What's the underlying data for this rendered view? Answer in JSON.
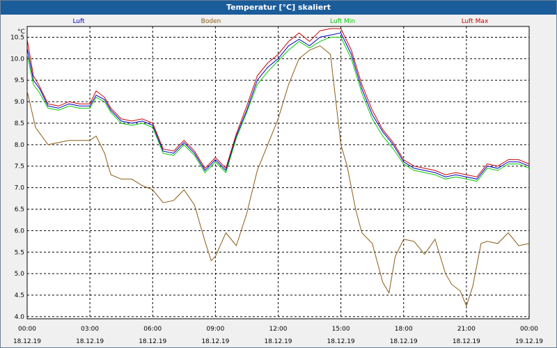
{
  "chart_data": {
    "type": "line",
    "title": "Temperatur [°C] skaliert",
    "ylabel": "°C",
    "ylim": [
      4.0,
      10.5
    ],
    "xlim_hours": [
      0,
      24
    ],
    "grid": true,
    "legend_position": "top",
    "y_ticks": [
      "10.5",
      "10.0",
      "9.5",
      "9.0",
      "8.5",
      "8.0",
      "7.5",
      "7.0",
      "6.5",
      "6.0",
      "5.5",
      "5.0",
      "4.5",
      "4.0"
    ],
    "x_ticks": [
      {
        "time": "00:00",
        "date": "18.12.19"
      },
      {
        "time": "03:00",
        "date": "18.12.19"
      },
      {
        "time": "06:00",
        "date": "18.12.19"
      },
      {
        "time": "09:00",
        "date": "18.12.19"
      },
      {
        "time": "12:00",
        "date": "18.12.19"
      },
      {
        "time": "15:00",
        "date": "18.12.19"
      },
      {
        "time": "18:00",
        "date": "18.12.19"
      },
      {
        "time": "21:00",
        "date": "18.12.19"
      },
      {
        "time": "00:00",
        "date": "19.12.19"
      }
    ],
    "series": [
      {
        "name": "Luft",
        "color": "#0000c8",
        "x": [
          0,
          0.3,
          0.6,
          1,
          1.5,
          2,
          2.5,
          3,
          3.3,
          3.7,
          4,
          4.5,
          5,
          5.5,
          6,
          6.5,
          7,
          7.5,
          8,
          8.5,
          9,
          9.5,
          10,
          10.5,
          11,
          11.5,
          12,
          12.5,
          13,
          13.5,
          14,
          14.5,
          15,
          15.5,
          16,
          16.5,
          17,
          17.5,
          18,
          18.5,
          19,
          19.5,
          20,
          20.5,
          21,
          21.5,
          22,
          22.5,
          23,
          23.5,
          24
        ],
        "y": [
          10.25,
          9.5,
          9.3,
          8.9,
          8.85,
          8.95,
          8.9,
          8.9,
          9.15,
          9.05,
          8.8,
          8.55,
          8.5,
          8.55,
          8.45,
          7.85,
          7.8,
          8.05,
          7.8,
          7.4,
          7.65,
          7.4,
          8.2,
          8.8,
          9.5,
          9.8,
          10.0,
          10.3,
          10.45,
          10.3,
          10.5,
          10.55,
          10.6,
          10.1,
          9.3,
          8.7,
          8.3,
          8.0,
          7.6,
          7.45,
          7.4,
          7.35,
          7.25,
          7.3,
          7.25,
          7.2,
          7.5,
          7.45,
          7.6,
          7.6,
          7.5
        ]
      },
      {
        "name": "Boden",
        "color": "#8b5a14",
        "x": [
          0,
          0.4,
          1,
          1.5,
          2,
          2.5,
          3,
          3.3,
          3.7,
          4,
          4.5,
          5,
          5.5,
          6,
          6.5,
          7,
          7.5,
          8,
          8.5,
          8.8,
          9,
          9.5,
          10,
          10.5,
          11,
          11.5,
          12,
          12.5,
          13,
          13.5,
          14,
          14.5,
          15,
          15.3,
          15.7,
          16,
          16.5,
          17,
          17.3,
          17.6,
          18,
          18.5,
          19,
          19.5,
          20,
          20.3,
          20.7,
          21,
          21.3,
          21.7,
          22,
          22.5,
          23,
          23.5,
          24
        ],
        "y": [
          9.25,
          8.4,
          8.0,
          8.05,
          8.1,
          8.1,
          8.1,
          8.2,
          7.8,
          7.3,
          7.2,
          7.2,
          7.05,
          6.95,
          6.65,
          6.7,
          6.95,
          6.6,
          5.75,
          5.3,
          5.4,
          5.95,
          5.65,
          6.4,
          7.4,
          8.0,
          8.6,
          9.4,
          10.0,
          10.2,
          10.3,
          10.1,
          8.0,
          7.5,
          6.5,
          5.95,
          5.7,
          4.8,
          4.55,
          5.4,
          5.8,
          5.75,
          5.45,
          5.8,
          5.0,
          4.75,
          4.6,
          4.25,
          4.7,
          5.7,
          5.75,
          5.7,
          5.95,
          5.65,
          5.7
        ]
      },
      {
        "name": "Luft Min",
        "color": "#00c800",
        "x": [
          0,
          0.3,
          0.6,
          1,
          1.5,
          2,
          2.5,
          3,
          3.3,
          3.7,
          4,
          4.5,
          5,
          5.5,
          6,
          6.5,
          7,
          7.5,
          8,
          8.5,
          9,
          9.5,
          10,
          10.5,
          11,
          11.5,
          12,
          12.5,
          13,
          13.5,
          14,
          14.5,
          15,
          15.5,
          16,
          16.5,
          17,
          17.5,
          18,
          18.5,
          19,
          19.5,
          20,
          20.5,
          21,
          21.5,
          22,
          22.5,
          23,
          23.5,
          24
        ],
        "y": [
          10.1,
          9.4,
          9.2,
          8.85,
          8.8,
          8.9,
          8.85,
          8.85,
          9.1,
          9.0,
          8.75,
          8.5,
          8.45,
          8.5,
          8.4,
          7.8,
          7.75,
          8.0,
          7.75,
          7.35,
          7.6,
          7.35,
          8.15,
          8.75,
          9.4,
          9.7,
          9.95,
          10.2,
          10.4,
          10.25,
          10.4,
          10.5,
          10.5,
          10.0,
          9.2,
          8.6,
          8.2,
          7.9,
          7.55,
          7.4,
          7.35,
          7.3,
          7.2,
          7.25,
          7.2,
          7.15,
          7.45,
          7.4,
          7.55,
          7.55,
          7.45
        ]
      },
      {
        "name": "Luft Max",
        "color": "#c80000",
        "x": [
          0,
          0.3,
          0.6,
          1,
          1.5,
          2,
          2.5,
          3,
          3.3,
          3.7,
          4,
          4.5,
          5,
          5.5,
          6,
          6.5,
          7,
          7.5,
          8,
          8.5,
          9,
          9.5,
          10,
          10.5,
          11,
          11.5,
          12,
          12.5,
          13,
          13.5,
          14,
          14.5,
          15,
          15.5,
          16,
          16.5,
          17,
          17.5,
          18,
          18.5,
          19,
          19.5,
          20,
          20.5,
          21,
          21.5,
          22,
          22.5,
          23,
          23.5,
          24
        ],
        "y": [
          10.45,
          9.6,
          9.35,
          8.95,
          8.9,
          9.0,
          8.95,
          8.95,
          9.25,
          9.1,
          8.85,
          8.6,
          8.55,
          8.6,
          8.5,
          7.9,
          7.85,
          8.1,
          7.85,
          7.45,
          7.7,
          7.45,
          8.25,
          8.9,
          9.6,
          9.9,
          10.1,
          10.4,
          10.6,
          10.4,
          10.65,
          10.7,
          10.7,
          10.2,
          9.4,
          8.8,
          8.35,
          8.05,
          7.65,
          7.5,
          7.45,
          7.4,
          7.3,
          7.35,
          7.3,
          7.25,
          7.55,
          7.5,
          7.65,
          7.65,
          7.55
        ]
      }
    ]
  }
}
